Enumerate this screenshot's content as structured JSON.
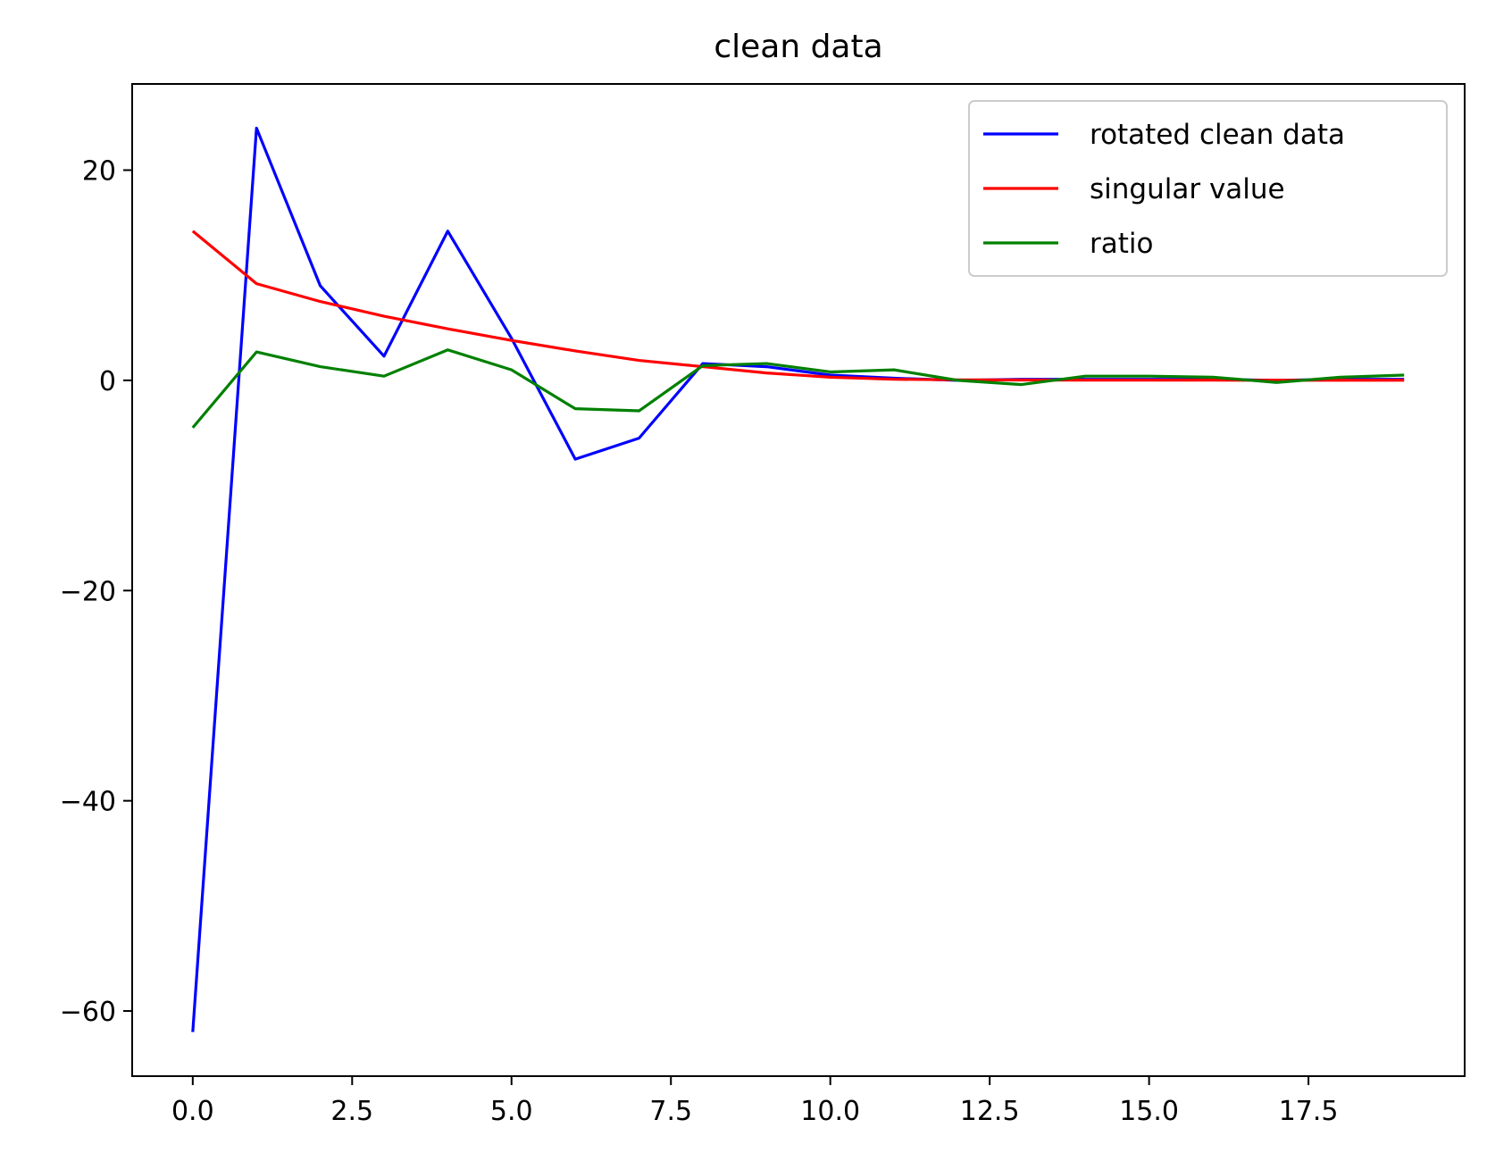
{
  "chart_data": {
    "type": "line",
    "title": "clean data",
    "xlabel": "",
    "ylabel": "",
    "xlim": [
      -0.95,
      19.95
    ],
    "ylim": [
      -66.2,
      28.2
    ],
    "x_ticks": [
      0.0,
      2.5,
      5.0,
      7.5,
      10.0,
      12.5,
      15.0,
      17.5
    ],
    "x_tick_labels": [
      "0.0",
      "2.5",
      "5.0",
      "7.5",
      "10.0",
      "12.5",
      "15.0",
      "17.5"
    ],
    "y_ticks": [
      -60,
      -40,
      -20,
      0,
      20
    ],
    "y_tick_labels": [
      "−60",
      "−40",
      "−20",
      "0",
      "20"
    ],
    "grid": false,
    "legend_position": "top-right",
    "x": [
      0,
      1,
      2,
      3,
      4,
      5,
      6,
      7,
      8,
      9,
      10,
      11,
      12,
      13,
      14,
      15,
      16,
      17,
      18,
      19
    ],
    "series": [
      {
        "name": "rotated clean data",
        "color": "#0000ff",
        "values": [
          -62.0,
          24.0,
          9.0,
          2.3,
          14.2,
          4.0,
          -7.5,
          -5.5,
          1.6,
          1.3,
          0.5,
          0.2,
          0.0,
          0.1,
          0.1,
          0.1,
          0.1,
          0.0,
          0.1,
          0.1
        ]
      },
      {
        "name": "singular value",
        "color": "#ff0000",
        "values": [
          14.2,
          9.2,
          7.5,
          6.1,
          4.9,
          3.8,
          2.8,
          1.9,
          1.3,
          0.7,
          0.3,
          0.1,
          0.05,
          0.03,
          0.02,
          0.02,
          0.02,
          0.01,
          0.01,
          0.01
        ]
      },
      {
        "name": "ratio",
        "color": "#008000",
        "values": [
          -4.5,
          2.7,
          1.3,
          0.4,
          2.9,
          1.0,
          -2.7,
          -2.9,
          1.4,
          1.6,
          0.8,
          1.0,
          0.0,
          -0.4,
          0.4,
          0.4,
          0.3,
          -0.2,
          0.3,
          0.5
        ]
      }
    ]
  }
}
